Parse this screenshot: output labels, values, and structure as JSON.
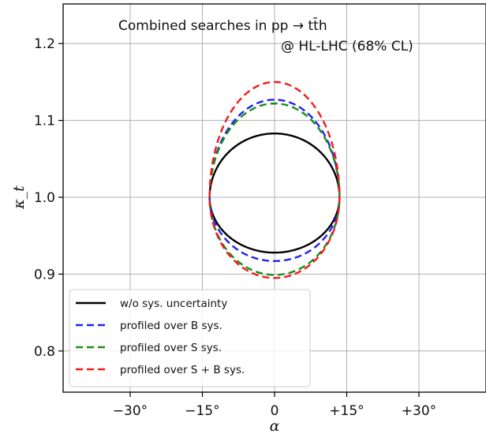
{
  "chart_data": {
    "type": "line",
    "title_line1": "Combined searches in pp → tt̄h",
    "title_line2": "@ HL-LHC (68% CL)",
    "xlabel": "α",
    "ylabel": "κ_t",
    "xlim": [
      -40,
      40
    ],
    "ylim": [
      0.74,
      1.25
    ],
    "grid": true,
    "legend_position": "lower-left",
    "x_ticks": [
      {
        "value": -30,
        "label": "−30°"
      },
      {
        "value": -15,
        "label": "−15°"
      },
      {
        "value": 0,
        "label": "0"
      },
      {
        "value": 15,
        "label": "+15°"
      },
      {
        "value": 30,
        "label": "+30°"
      }
    ],
    "y_ticks": [
      {
        "value": 0.8,
        "label": "0.8"
      },
      {
        "value": 0.9,
        "label": "0.9"
      },
      {
        "value": 1.0,
        "label": "1.0"
      },
      {
        "value": 1.1,
        "label": "1.1"
      },
      {
        "value": 1.2,
        "label": "1.2"
      }
    ],
    "series": [
      {
        "name": "w/o sys. uncertainty",
        "color": "#000000",
        "dashed": false,
        "x_half": 13.5,
        "y_center": 1.0,
        "y_upper": 1.083,
        "y_lower": 0.928
      },
      {
        "name": "profiled over B sys.",
        "color": "#1f22f0",
        "dashed": true,
        "x_half": 13.5,
        "y_center": 1.0,
        "y_upper": 1.127,
        "y_lower": 0.917
      },
      {
        "name": "profiled over S sys.",
        "color": "#1a8c1a",
        "dashed": true,
        "x_half": 13.5,
        "y_center": 1.0,
        "y_upper": 1.122,
        "y_lower": 0.899
      },
      {
        "name": "profiled over S + B sys.",
        "color": "#f41a1a",
        "dashed": true,
        "x_half": 13.5,
        "y_center": 1.0,
        "y_upper": 1.15,
        "y_lower": 0.895
      }
    ]
  }
}
